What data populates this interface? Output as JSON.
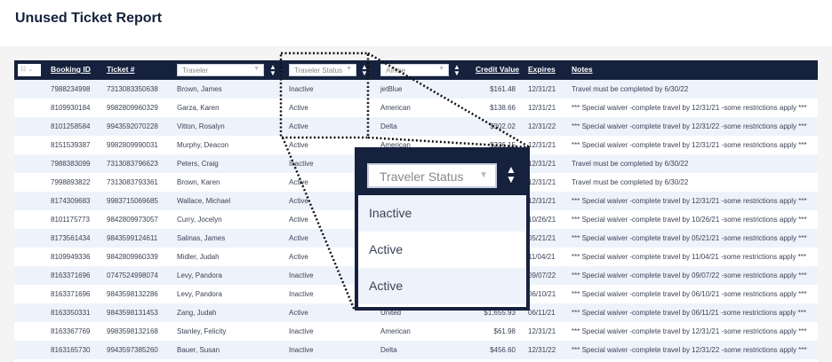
{
  "page": {
    "title": "Unused Ticket Report"
  },
  "header": {
    "column_chooser_icon": "columns-icon",
    "booking_id": "Booking ID",
    "ticket": "Ticket #",
    "traveler": "Traveler",
    "traveler_status": "Traveler Status",
    "airline": "Airline",
    "credit_value": "Credit Value",
    "expires": "Expires",
    "notes": "Notes"
  },
  "rows": [
    {
      "booking": "7988234998",
      "ticket": "7313083350638",
      "traveler": "Brown, James",
      "status": "Inactive",
      "airline": "jetBlue",
      "credit": "$161.48",
      "expires": "12/31/21",
      "notes": "Travel must be completed by 6/30/22"
    },
    {
      "booking": "8109930184",
      "ticket": "9982809960329",
      "traveler": "Garza, Karen",
      "status": "Active",
      "airline": "American",
      "credit": "$138.66",
      "expires": "12/31/21",
      "notes": "*** Special waiver -complete travel by 12/31/21 -some restrictions apply ***"
    },
    {
      "booking": "8101258584",
      "ticket": "9943592070228",
      "traveler": "Vitton, Rosalyn",
      "status": "Active",
      "airline": "Delta",
      "credit": "$302.02",
      "expires": "12/31/22",
      "notes": "*** Special waiver -complete travel by 12/31/22 -some restrictions apply ***"
    },
    {
      "booking": "8151539387",
      "ticket": "9982809990031",
      "traveler": "Murphy, Deacon",
      "status": "Active",
      "airline": "American",
      "credit": "$236.15",
      "expires": "12/31/21",
      "notes": "*** Special waiver -complete travel by 12/31/21 -some restrictions apply ***"
    },
    {
      "booking": "7988383099",
      "ticket": "7313083796623",
      "traveler": "Peters, Craig",
      "status": "Inactive",
      "airline": "",
      "credit": "",
      "expires": "12/31/21",
      "notes": "Travel must be completed by 6/30/22"
    },
    {
      "booking": "7998893822",
      "ticket": "7313083793361",
      "traveler": "Brown, Karen",
      "status": "Active",
      "airline": "",
      "credit": "",
      "expires": "12/31/21",
      "notes": "Travel must be completed by 6/30/22"
    },
    {
      "booking": "8174309683",
      "ticket": "9983715069685",
      "traveler": "Wallace, Michael",
      "status": "Active",
      "airline": "",
      "credit": "",
      "expires": "12/31/21",
      "notes": "*** Special waiver -complete travel by 12/31/21 -some restrictions apply ***"
    },
    {
      "booking": "8101175773",
      "ticket": "9842809973057",
      "traveler": "Curry, Jocelyn",
      "status": "Active",
      "airline": "",
      "credit": "",
      "expires": "10/26/21",
      "notes": "*** Special waiver -complete travel by 10/26/21 -some restrictions apply ***"
    },
    {
      "booking": "8173561434",
      "ticket": "9843599124611",
      "traveler": "Salinas, James",
      "status": "Active",
      "airline": "",
      "credit": "",
      "expires": "05/21/21",
      "notes": "*** Special waiver -complete travel by 05/21/21 -some restrictions apply ***"
    },
    {
      "booking": "8109949336",
      "ticket": "9842809960339",
      "traveler": "Midler, Judah",
      "status": "Active",
      "airline": "",
      "credit": "",
      "expires": "11/04/21",
      "notes": "*** Special waiver -complete travel by 11/04/21 -some restrictions apply ***"
    },
    {
      "booking": "8163371696",
      "ticket": "0747524998074",
      "traveler": "Levy, Pandora",
      "status": "Inactive",
      "airline": "",
      "credit": "",
      "expires": "09/07/22",
      "notes": "*** Special waiver -complete travel by 09/07/22 -some restrictions apply ***"
    },
    {
      "booking": "8163371696",
      "ticket": "9843598132286",
      "traveler": "Levy, Pandora",
      "status": "Inactive",
      "airline": "",
      "credit": "",
      "expires": "06/10/21",
      "notes": "*** Special waiver -complete travel by 06/10/21 -some restrictions apply ***"
    },
    {
      "booking": "8163350331",
      "ticket": "9843598131453",
      "traveler": "Zang, Judah",
      "status": "Active",
      "airline": "United",
      "credit": "$1,655.93",
      "expires": "06/11/21",
      "notes": "*** Special waiver -complete travel by 06/11/21 -some restrictions apply ***"
    },
    {
      "booking": "8163367769",
      "ticket": "9983598132168",
      "traveler": "Stanley, Felicity",
      "status": "Inactive",
      "airline": "American",
      "credit": "$61.98",
      "expires": "12/31/21",
      "notes": "*** Special waiver -complete travel by 12/31/21 -some restrictions apply ***"
    },
    {
      "booking": "8163165730",
      "ticket": "9943597385260",
      "traveler": "Bauer, Susan",
      "status": "Inactive",
      "airline": "Delta",
      "credit": "$456.60",
      "expires": "12/31/22",
      "notes": "*** Special waiver -complete travel by 12/31/22 -some restrictions apply ***"
    }
  ],
  "popup": {
    "select_label": "Traveler Status",
    "options": [
      "Inactive",
      "Active",
      "Active"
    ]
  },
  "colors": {
    "header": "#16213d",
    "stripe": "#eef3fb"
  }
}
